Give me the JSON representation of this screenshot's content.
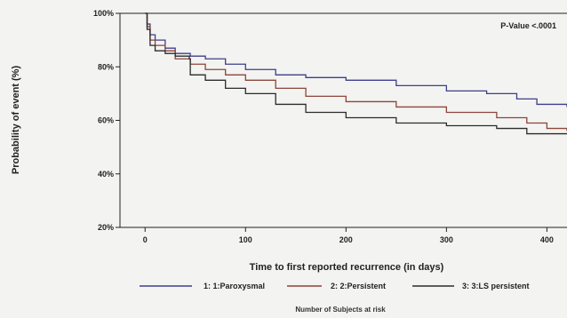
{
  "chart_data": {
    "type": "line",
    "xlabel": "Time to first reported recurrence (in days)",
    "ylabel": "Probability of event (%)",
    "xlim": [
      -25,
      420
    ],
    "ylim": [
      20,
      100
    ],
    "x_ticks": [
      0,
      100,
      200,
      300,
      400
    ],
    "y_ticks": [
      {
        "value": 100,
        "label": "100%"
      },
      {
        "value": 80,
        "label": "80%"
      },
      {
        "value": 60,
        "label": "60%"
      },
      {
        "value": 40,
        "label": "40%"
      },
      {
        "value": 20,
        "label": "20%"
      }
    ],
    "annotation": "P-Value <.0001",
    "grid": false,
    "legend_position": "bottom",
    "series": [
      {
        "name": "1: 1:Paroxysmal",
        "color": "#3d3f8c",
        "points": [
          [
            0,
            100
          ],
          [
            2,
            96
          ],
          [
            5,
            92
          ],
          [
            10,
            90
          ],
          [
            20,
            87
          ],
          [
            30,
            85
          ],
          [
            45,
            84
          ],
          [
            60,
            83
          ],
          [
            80,
            81
          ],
          [
            100,
            79
          ],
          [
            130,
            77
          ],
          [
            160,
            76
          ],
          [
            200,
            75
          ],
          [
            250,
            73
          ],
          [
            300,
            71
          ],
          [
            340,
            70
          ],
          [
            370,
            68
          ],
          [
            390,
            66
          ],
          [
            420,
            65
          ]
        ]
      },
      {
        "name": "2: 2:Persistent",
        "color": "#8c4538",
        "points": [
          [
            0,
            100
          ],
          [
            2,
            95
          ],
          [
            5,
            90
          ],
          [
            10,
            88
          ],
          [
            20,
            86
          ],
          [
            30,
            83
          ],
          [
            45,
            81
          ],
          [
            60,
            79
          ],
          [
            80,
            77
          ],
          [
            100,
            75
          ],
          [
            130,
            72
          ],
          [
            160,
            69
          ],
          [
            200,
            67
          ],
          [
            250,
            65
          ],
          [
            300,
            63
          ],
          [
            350,
            61
          ],
          [
            380,
            59
          ],
          [
            400,
            57
          ],
          [
            420,
            56
          ]
        ]
      },
      {
        "name": "3: 3:LS persistent",
        "color": "#2b2b2b",
        "points": [
          [
            0,
            100
          ],
          [
            2,
            94
          ],
          [
            5,
            88
          ],
          [
            10,
            86
          ],
          [
            20,
            85
          ],
          [
            30,
            84
          ],
          [
            44,
            83
          ],
          [
            45,
            77
          ],
          [
            60,
            75
          ],
          [
            80,
            72
          ],
          [
            100,
            70
          ],
          [
            130,
            66
          ],
          [
            160,
            63
          ],
          [
            200,
            61
          ],
          [
            250,
            59
          ],
          [
            300,
            58
          ],
          [
            350,
            57
          ],
          [
            380,
            55
          ],
          [
            420,
            55
          ]
        ]
      }
    ]
  },
  "risk_table": {
    "title": "Number of Subjects at risk"
  }
}
